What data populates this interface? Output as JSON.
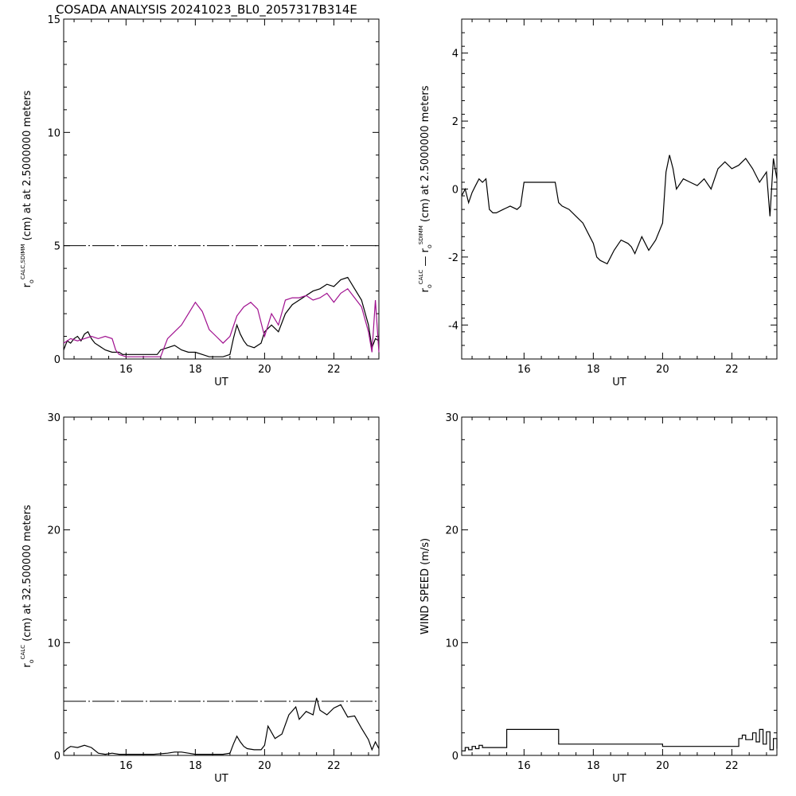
{
  "page_title": "COSADA ANALYSIS 20241023_BL0_2057317B314E",
  "colors": {
    "primary": "#000000",
    "secondary": "#a0108f"
  },
  "chart_data": [
    {
      "type": "line",
      "xlabel": "UT",
      "ylabel_parts": {
        "sym": "r",
        "sub": "o",
        "sup": "CALC,SDIMM",
        "rest": "(cm) at  at 2.5000000 meters"
      },
      "xlim": [
        14.2,
        23.3
      ],
      "ylim": [
        0,
        15
      ],
      "xticks": [
        16,
        18,
        20,
        22
      ],
      "yticks": [
        0,
        5,
        10,
        15
      ],
      "reference_line": {
        "y": 5,
        "style": "dash-dot"
      },
      "series": [
        {
          "color": "#000000",
          "x": [
            14.2,
            14.3,
            14.4,
            14.5,
            14.6,
            14.7,
            14.8,
            14.9,
            15.0,
            15.1,
            15.2,
            15.4,
            15.6,
            15.8,
            15.9,
            16.2,
            16.8,
            16.9,
            17.0,
            17.2,
            17.4,
            17.6,
            17.8,
            18.0,
            18.2,
            18.4,
            18.6,
            18.8,
            19.0,
            19.1,
            19.2,
            19.3,
            19.4,
            19.5,
            19.7,
            19.9,
            20.0,
            20.2,
            20.4,
            20.6,
            20.8,
            21.0,
            21.2,
            21.4,
            21.6,
            21.8,
            22.0,
            22.2,
            22.4,
            22.6,
            22.8,
            23.0,
            23.1,
            23.2,
            23.3
          ],
          "y": [
            0.4,
            0.8,
            0.7,
            0.9,
            1.0,
            0.8,
            1.1,
            1.2,
            0.9,
            0.7,
            0.6,
            0.4,
            0.3,
            0.3,
            0.2,
            0.2,
            0.2,
            0.2,
            0.4,
            0.5,
            0.6,
            0.4,
            0.3,
            0.3,
            0.2,
            0.1,
            0.1,
            0.1,
            0.2,
            0.9,
            1.5,
            1.1,
            0.8,
            0.6,
            0.5,
            0.7,
            1.2,
            1.5,
            1.2,
            2.0,
            2.4,
            2.6,
            2.8,
            3.0,
            3.1,
            3.3,
            3.2,
            3.5,
            3.6,
            3.1,
            2.6,
            1.5,
            0.5,
            0.9,
            0.8
          ]
        },
        {
          "color": "#a0108f",
          "x": [
            14.2,
            14.4,
            14.6,
            14.8,
            15.0,
            15.2,
            15.4,
            15.6,
            15.7,
            15.8,
            16.0,
            16.5,
            16.8,
            17.0,
            17.2,
            17.4,
            17.6,
            17.8,
            18.0,
            18.2,
            18.4,
            18.6,
            18.8,
            19.0,
            19.2,
            19.4,
            19.6,
            19.8,
            20.0,
            20.2,
            20.4,
            20.6,
            20.8,
            21.0,
            21.2,
            21.4,
            21.6,
            21.8,
            22.0,
            22.2,
            22.4,
            22.6,
            22.8,
            23.0,
            23.1,
            23.2,
            23.3
          ],
          "y": [
            0.7,
            0.9,
            0.8,
            0.9,
            1.0,
            0.9,
            1.0,
            0.9,
            0.4,
            0.2,
            0.1,
            0.1,
            0.1,
            0.1,
            0.9,
            1.2,
            1.5,
            2.0,
            2.5,
            2.1,
            1.3,
            1.0,
            0.7,
            1.0,
            1.9,
            2.3,
            2.5,
            2.2,
            1.0,
            2.0,
            1.5,
            2.6,
            2.7,
            2.7,
            2.8,
            2.6,
            2.7,
            2.9,
            2.5,
            2.9,
            3.1,
            2.7,
            2.3,
            1.2,
            0.3,
            2.6,
            0.3
          ]
        }
      ]
    },
    {
      "type": "line",
      "xlabel": "UT",
      "ylabel_parts": {
        "sym": "r",
        "sub": "o",
        "sup": "CALC",
        "mid": " — ",
        "sym2": "r",
        "sub2": "o",
        "sup2": "SDIMM",
        "rest": "(cm) at 2.5000000 meters"
      },
      "xlim": [
        14.2,
        23.3
      ],
      "ylim": [
        -5,
        5
      ],
      "xticks": [
        16,
        18,
        20,
        22
      ],
      "yticks": [
        -4,
        -2,
        0,
        2,
        4
      ],
      "series": [
        {
          "color": "#000000",
          "x": [
            14.2,
            14.3,
            14.4,
            14.5,
            14.6,
            14.7,
            14.8,
            14.9,
            15.0,
            15.1,
            15.2,
            15.4,
            15.6,
            15.8,
            15.9,
            16.0,
            16.5,
            16.9,
            17.0,
            17.1,
            17.3,
            17.5,
            17.7,
            17.9,
            18.0,
            18.1,
            18.2,
            18.4,
            18.6,
            18.8,
            19.0,
            19.1,
            19.2,
            19.4,
            19.6,
            19.8,
            20.0,
            20.1,
            20.2,
            20.3,
            20.4,
            20.6,
            20.8,
            21.0,
            21.2,
            21.4,
            21.6,
            21.8,
            22.0,
            22.2,
            22.4,
            22.6,
            22.8,
            23.0,
            23.1,
            23.2,
            23.3
          ],
          "y": [
            -0.2,
            0.0,
            -0.4,
            -0.1,
            0.1,
            0.3,
            0.2,
            0.3,
            -0.6,
            -0.7,
            -0.7,
            -0.6,
            -0.5,
            -0.6,
            -0.5,
            0.2,
            0.2,
            0.2,
            -0.4,
            -0.5,
            -0.6,
            -0.8,
            -1.0,
            -1.4,
            -1.6,
            -2.0,
            -2.1,
            -2.2,
            -1.8,
            -1.5,
            -1.6,
            -1.7,
            -1.9,
            -1.4,
            -1.8,
            -1.5,
            -1.0,
            0.5,
            1.0,
            0.6,
            0.0,
            0.3,
            0.2,
            0.1,
            0.3,
            0.0,
            0.6,
            0.8,
            0.6,
            0.7,
            0.9,
            0.6,
            0.2,
            0.5,
            -0.8,
            0.9,
            0.3
          ]
        }
      ]
    },
    {
      "type": "line",
      "xlabel": "UT",
      "ylabel_parts": {
        "sym": "r",
        "sub": "o",
        "sup": "CALC",
        "rest": "(cm) at 32.500000 meters"
      },
      "xlim": [
        14.2,
        23.3
      ],
      "ylim": [
        0,
        30
      ],
      "xticks": [
        16,
        18,
        20,
        22
      ],
      "yticks": [
        0,
        10,
        20,
        30
      ],
      "reference_line": {
        "y": 4.8,
        "style": "dash-dot"
      },
      "series": [
        {
          "color": "#000000",
          "x": [
            14.2,
            14.3,
            14.4,
            14.6,
            14.8,
            15.0,
            15.2,
            15.4,
            15.6,
            15.8,
            16.0,
            16.4,
            16.8,
            17.2,
            17.4,
            17.6,
            17.8,
            18.0,
            18.4,
            18.8,
            19.0,
            19.1,
            19.2,
            19.3,
            19.4,
            19.5,
            19.7,
            19.9,
            20.0,
            20.1,
            20.3,
            20.5,
            20.7,
            20.9,
            21.0,
            21.2,
            21.4,
            21.5,
            21.6,
            21.8,
            22.0,
            22.2,
            22.4,
            22.6,
            22.8,
            23.0,
            23.1,
            23.2,
            23.3
          ],
          "y": [
            0.3,
            0.6,
            0.8,
            0.7,
            0.9,
            0.7,
            0.2,
            0.1,
            0.2,
            0.1,
            0.1,
            0.1,
            0.1,
            0.2,
            0.3,
            0.3,
            0.2,
            0.1,
            0.1,
            0.1,
            0.2,
            1.0,
            1.7,
            1.2,
            0.8,
            0.6,
            0.5,
            0.5,
            0.9,
            2.6,
            1.5,
            1.9,
            3.6,
            4.3,
            3.2,
            3.9,
            3.6,
            5.1,
            4.0,
            3.6,
            4.2,
            4.5,
            3.4,
            3.5,
            2.4,
            1.4,
            0.5,
            1.2,
            0.6
          ]
        }
      ]
    },
    {
      "type": "line",
      "xlabel": "UT",
      "ylabel": "WIND SPEED (m/s)",
      "xlim": [
        14.2,
        23.3
      ],
      "ylim": [
        0,
        30
      ],
      "xticks": [
        16,
        18,
        20,
        22
      ],
      "yticks": [
        0,
        10,
        20,
        30
      ],
      "series": [
        {
          "color": "#000000",
          "step": true,
          "x": [
            14.2,
            14.3,
            14.4,
            14.5,
            14.6,
            14.7,
            14.8,
            15.0,
            15.2,
            15.4,
            15.5,
            16.0,
            16.9,
            17.0,
            18.0,
            19.0,
            19.9,
            20.0,
            21.0,
            22.1,
            22.2,
            22.3,
            22.4,
            22.6,
            22.7,
            22.8,
            22.9,
            23.0,
            23.1,
            23.2,
            23.3
          ],
          "y": [
            0.4,
            0.7,
            0.5,
            0.8,
            0.6,
            0.9,
            0.7,
            0.7,
            0.7,
            0.7,
            2.3,
            2.3,
            2.3,
            1.0,
            1.0,
            1.0,
            1.0,
            0.8,
            0.8,
            0.8,
            1.5,
            1.8,
            1.4,
            2.0,
            1.2,
            2.3,
            1.0,
            2.1,
            0.5,
            1.5,
            0.6
          ]
        }
      ]
    }
  ]
}
